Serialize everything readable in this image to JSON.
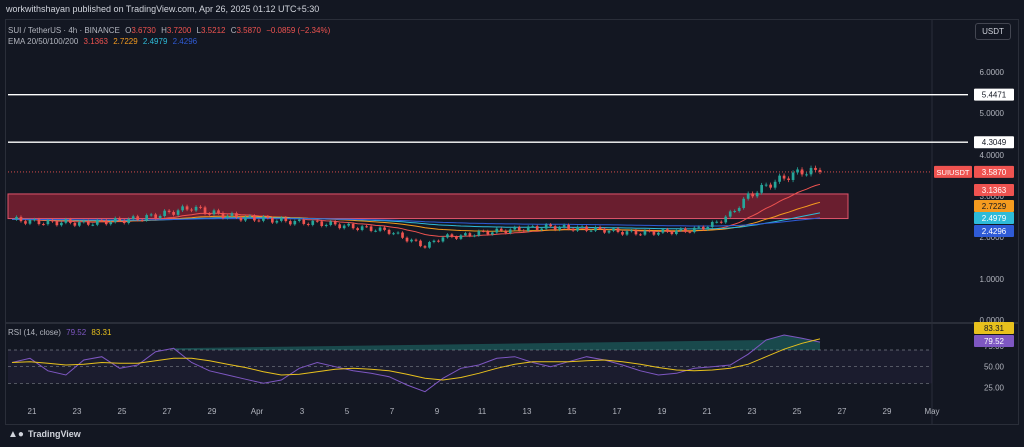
{
  "header": {
    "published_text": "workwithshayan published on TradingView.com, Apr 26, 2025 01:12 UTC+5:30"
  },
  "legend": {
    "symbol": "SUI / TetherUS · 4h · BINANCE",
    "o_label": "O",
    "o_value": "3.6730",
    "h_label": "H",
    "h_value": "3.7200",
    "l_label": "L",
    "l_value": "3.5212",
    "c_label": "C",
    "c_value": "3.5870",
    "change": "−0.0859 (−2.34%)",
    "ema_label": "EMA 20/50/100/200",
    "ema_values": [
      "3.1363",
      "2.7229",
      "2.4979",
      "2.4296"
    ],
    "rsi_label": "RSI (14, close)",
    "rsi_values": [
      "79.52",
      "83.31"
    ]
  },
  "currency_button": "USDT",
  "footer": {
    "brand": "TradingView"
  },
  "colors": {
    "bg": "#131722",
    "up": "#26a69a",
    "down": "#ef5350",
    "zone": "#b2253a",
    "ema20": "#ef5350",
    "ema50": "#f59b1f",
    "ema100": "#2ebbd8",
    "ema200": "#2f5bd6",
    "rsi": "#7e57c2",
    "rsi_ma": "#e8c11d"
  },
  "chart_data": [
    {
      "type": "candlestick",
      "title": "SUI / TetherUS · 4h · BINANCE",
      "x_ticks": [
        "21",
        "23",
        "25",
        "27",
        "29",
        "Apr",
        "3",
        "5",
        "7",
        "9",
        "11",
        "13",
        "15",
        "17",
        "19",
        "21",
        "23",
        "25",
        "27",
        "29",
        "May"
      ],
      "y_ticks": [
        "6.0000",
        "5.0000",
        "4.0000",
        "3.0000",
        "2.0000",
        "1.0000",
        "0.0000"
      ],
      "ylim": [
        0,
        6.5
      ],
      "scale": "log",
      "horizontal_levels": [
        {
          "value": 5.4471,
          "label": "5.4471"
        },
        {
          "value": 4.3049,
          "label": "4.3049"
        }
      ],
      "zone": {
        "low": 2.45,
        "high": 3.05
      },
      "last_price": {
        "name": "SUIUSDT",
        "value": 3.587,
        "label": "3.5870"
      },
      "ema_labels": [
        {
          "name": "EMA 20",
          "value": 3.1363,
          "label": "3.1363"
        },
        {
          "name": "EMA 50",
          "value": 2.7229,
          "label": "2.7229"
        },
        {
          "name": "EMA 100",
          "value": 2.4979,
          "label": "2.4979"
        },
        {
          "name": "EMA 200",
          "value": 2.4296,
          "label": "2.4296"
        }
      ],
      "close_series": [
        2.43,
        2.38,
        2.35,
        2.36,
        2.33,
        2.37,
        2.4,
        2.45,
        2.52,
        2.62,
        2.72,
        2.6,
        2.52,
        2.46,
        2.44,
        2.4,
        2.36,
        2.34,
        2.3,
        2.24,
        2.2,
        2.14,
        1.95,
        1.78,
        2.0,
        2.02,
        2.1,
        2.14,
        2.18,
        2.22,
        2.25,
        2.22,
        2.2,
        2.17,
        2.12,
        2.1,
        2.12,
        2.14,
        2.18,
        2.3,
        2.55,
        3.0,
        3.25,
        3.45,
        3.6,
        3.587
      ]
    },
    {
      "type": "line",
      "title": "RSI (14, close)",
      "y_ticks": [
        "75.00",
        "50.00",
        "25.00"
      ],
      "ylim": [
        10,
        100
      ],
      "bands": [
        70,
        50,
        30
      ],
      "series": [
        {
          "name": "RSI",
          "values": [
            55,
            60,
            45,
            40,
            58,
            62,
            48,
            52,
            68,
            72,
            55,
            45,
            40,
            35,
            30,
            34,
            48,
            55,
            50,
            45,
            42,
            38,
            28,
            20,
            36,
            48,
            52,
            60,
            62,
            55,
            50,
            56,
            62,
            58,
            52,
            45,
            40,
            42,
            48,
            50,
            52,
            65,
            82,
            88,
            84,
            79.52
          ]
        },
        {
          "name": "RSI MA",
          "values": [
            55,
            56,
            54,
            52,
            53,
            55,
            54,
            54,
            57,
            60,
            60,
            57,
            53,
            49,
            44,
            40,
            41,
            44,
            47,
            48,
            47,
            45,
            41,
            36,
            34,
            37,
            42,
            48,
            53,
            56,
            56,
            56,
            57,
            58,
            56,
            53,
            49,
            46,
            45,
            46,
            48,
            53,
            62,
            71,
            78,
            83.31
          ]
        }
      ],
      "last_values": [
        {
          "name": "RSI MA",
          "value": 83.31,
          "label": "83.31"
        },
        {
          "name": "RSI",
          "value": 79.52,
          "label": "79.52"
        }
      ]
    }
  ]
}
